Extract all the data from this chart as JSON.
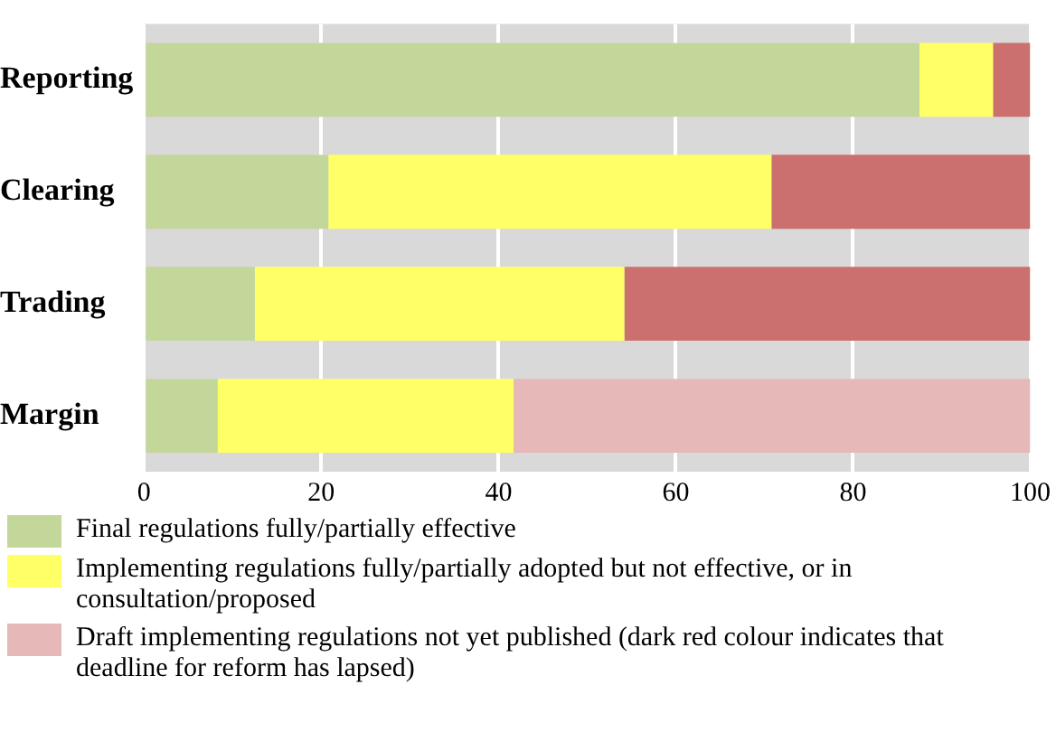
{
  "chart_data": {
    "type": "bar",
    "orientation": "horizontal",
    "stacked": true,
    "categories": [
      "Reporting",
      "Clearing",
      "Trading",
      "Margin"
    ],
    "series": [
      {
        "name": "Final regulations fully/partially effective",
        "color": "#c4d79b",
        "values": [
          87.5,
          20.8,
          12.5,
          8.3
        ]
      },
      {
        "name": "Implementing regulations fully/partially adopted but not effective, or in consultation/proposed",
        "color": "#ffff66",
        "values": [
          8.3,
          50,
          41.7,
          33.4
        ]
      },
      {
        "name": "Draft implementing regulations not yet published (dark red colour indicates that deadline for reform has lapsed)",
        "color": "#e6b8b7",
        "colors": [
          "#cc6f6f",
          "#cc6f6f",
          "#cc6f6f",
          "#e6b8b7"
        ],
        "values": [
          4.2,
          29.2,
          45.8,
          58.3
        ]
      }
    ],
    "xlim": [
      0,
      100
    ],
    "xticks": [
      0,
      20,
      40,
      60,
      80,
      100
    ],
    "grid": "x",
    "legend": "bottom"
  }
}
